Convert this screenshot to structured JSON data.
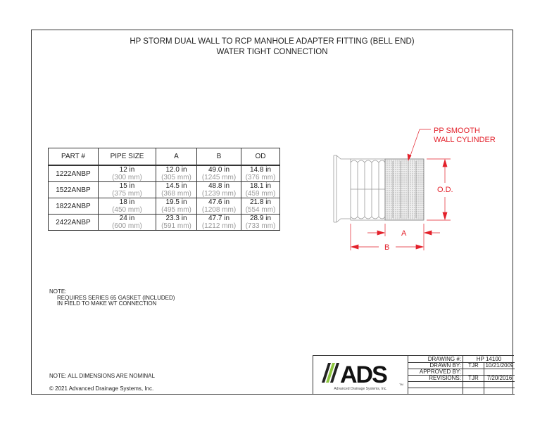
{
  "title": {
    "line1": "HP STORM DUAL WALL TO RCP MANHOLE ADAPTER FITTING (BELL END)",
    "line2": "WATER TIGHT CONNECTION"
  },
  "table": {
    "headers": [
      "PART #",
      "PIPE SIZE",
      "A",
      "B",
      "OD"
    ],
    "rows": [
      {
        "part": "1222ANBP",
        "pipe": "12 in",
        "pipe_mm": "(300 mm)",
        "a": "12.0 in",
        "a_mm": "(305 mm)",
        "b": "49.0 in",
        "b_mm": "(1245 mm)",
        "od": "14.8 in",
        "od_mm": "(376 mm)"
      },
      {
        "part": "1522ANBP",
        "pipe": "15 in",
        "pipe_mm": "(375 mm)",
        "a": "14.5 in",
        "a_mm": "(368 mm)",
        "b": "48.8 in",
        "b_mm": "(1239 mm)",
        "od": "18.1 in",
        "od_mm": "(459 mm)"
      },
      {
        "part": "1822ANBP",
        "pipe": "18 in",
        "pipe_mm": "(450 mm)",
        "a": "19.5 in",
        "a_mm": "(495 mm)",
        "b": "47.6 in",
        "b_mm": "(1208 mm)",
        "od": "21.8 in",
        "od_mm": "(554 mm)"
      },
      {
        "part": "2422ANBP",
        "pipe": "24 in",
        "pipe_mm": "(600 mm)",
        "a": "23.3 in",
        "a_mm": "(591 mm)",
        "b": "47.7 in",
        "b_mm": "(1212 mm)",
        "od": "28.9 in",
        "od_mm": "(733 mm)"
      }
    ]
  },
  "drawing": {
    "callout_line1": "PP SMOOTH",
    "callout_line2": "WALL CYLINDER",
    "od_label": "O.D.",
    "a_label": "A",
    "b_label": "B",
    "dimension_color": "#e3212b"
  },
  "notes": {
    "heading": "NOTE:",
    "line1": "REQUIRES SERIES 65 GASKET (INCLUDED)",
    "line2": "IN FIELD TO MAKE WT CONNECTION",
    "nominal": "NOTE: ALL DIMENSIONS ARE NOMINAL",
    "copyright": "© 2021 Advanced Drainage Systems, Inc."
  },
  "title_block": {
    "logo_text": "ADS",
    "logo_tm": "TM",
    "logo_sub": "Advanced Drainage Systems, Inc.",
    "logo_green": "#8dc63f",
    "drawing_label": "DRAWING #:",
    "drawing_value": "HP 14100",
    "drawn_label": "DRAWN BY:",
    "drawn_by": "TJR",
    "drawn_date": "10/21/2009",
    "approved_label": "APPROVED BY:",
    "revisions_label": "REVISIONS:",
    "rev_by": "TJR",
    "rev_date": "7/20/2016"
  }
}
